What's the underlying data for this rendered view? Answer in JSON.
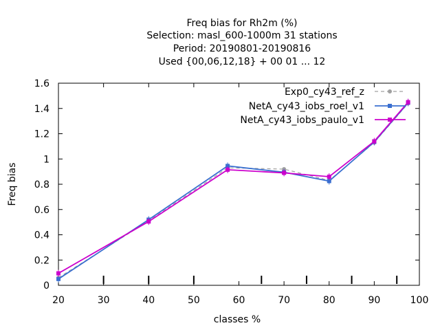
{
  "chart_data": {
    "type": "line",
    "title_lines": [
      "Freq bias  for Rh2m (%)",
      "Selection: masl_600-1000m     31 stations",
      "Period: 20190801-20190816",
      "Used {00,06,12,18} + 00 01 ... 12"
    ],
    "xlabel": "classes %",
    "ylabel": "Freq bias",
    "xlim": [
      20,
      100
    ],
    "ylim": [
      0,
      1.6
    ],
    "xticks": [
      "20",
      "30",
      "40",
      "50",
      "60",
      "70",
      "80",
      "90",
      "100"
    ],
    "yticks": [
      "0",
      "0.2",
      "0.4",
      "0.6",
      "0.8",
      "1",
      "1.2",
      "1.4",
      "1.6"
    ],
    "legend_position": "top-right",
    "grid": false,
    "series": [
      {
        "name": "Exp0_cy43_ref_z",
        "color": "#a0a0a0",
        "dash": true,
        "x": [
          20,
          40,
          57.5,
          70,
          80,
          90,
          97.5
        ],
        "y": [
          0.06,
          0.51,
          0.93,
          0.92,
          0.83,
          1.13,
          1.44
        ]
      },
      {
        "name": "NetA_cy43_iobs_roel_v1",
        "color": "#3a6fd0",
        "dash": false,
        "x": [
          20,
          40,
          57.5,
          70,
          80,
          90,
          97.5
        ],
        "y": [
          0.05,
          0.52,
          0.945,
          0.895,
          0.825,
          1.135,
          1.445
        ]
      },
      {
        "name": "NetA_cy43_iobs_paulo_v1",
        "color": "#cc00cc",
        "dash": false,
        "x": [
          20,
          40,
          57.5,
          70,
          80,
          90,
          97.5
        ],
        "y": [
          0.095,
          0.505,
          0.915,
          0.89,
          0.86,
          1.14,
          1.45
        ]
      }
    ]
  }
}
